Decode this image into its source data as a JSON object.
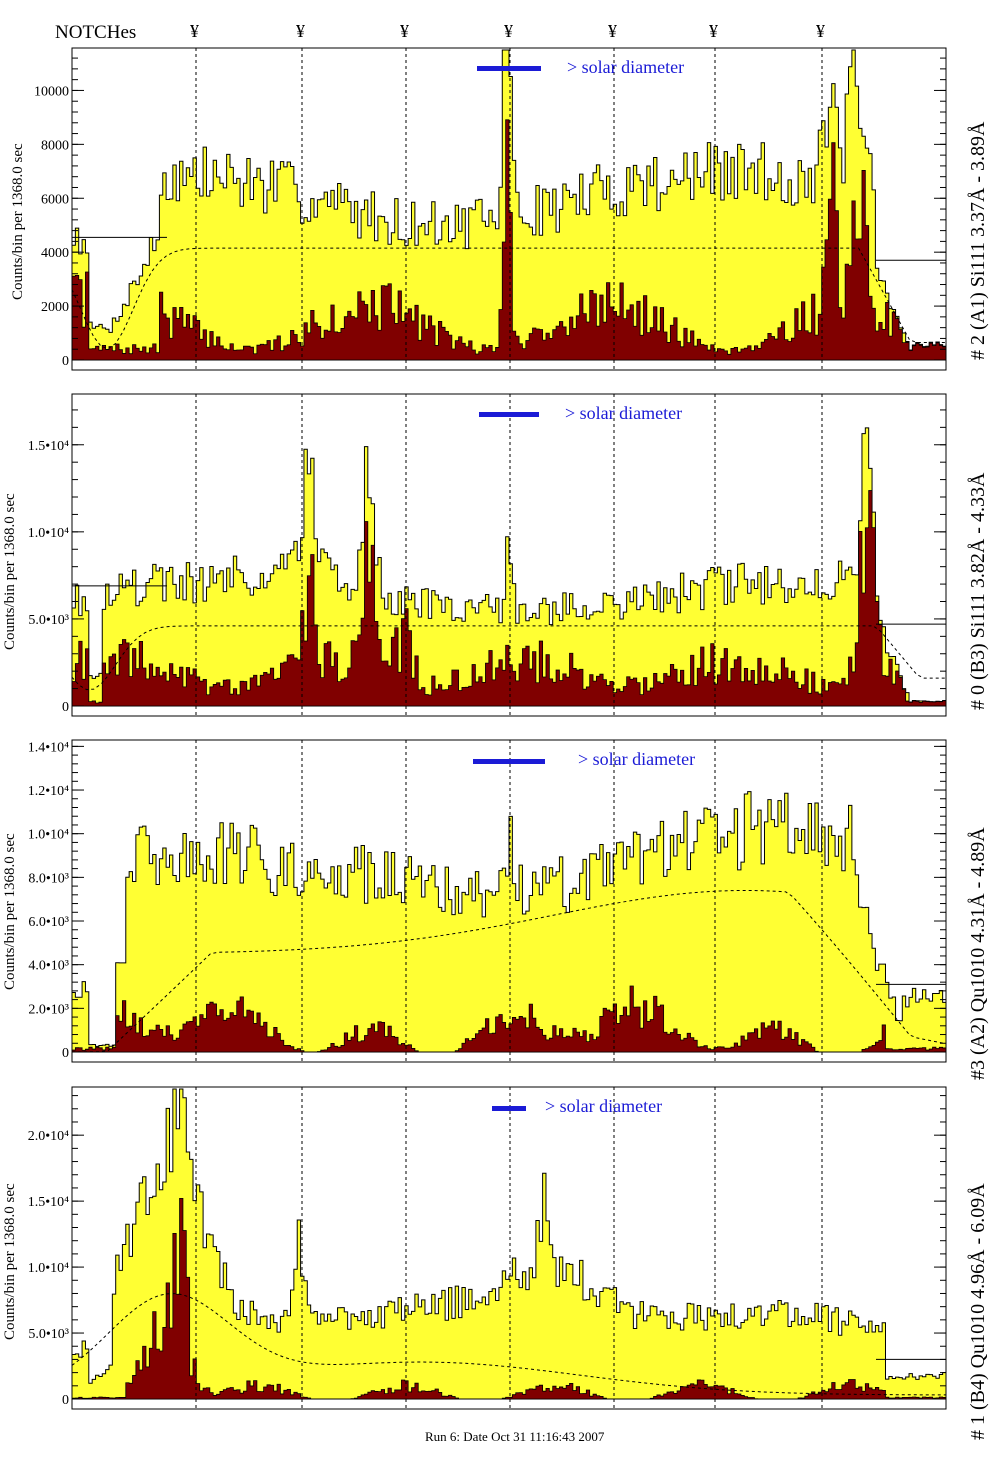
{
  "header": {
    "notches_label": "NOTCHes",
    "notch_symbol": "¥"
  },
  "footer": {
    "run_text": "Run 6: Date Oct 31 11:16:43 2007"
  },
  "colors": {
    "envelope_fill": "#ffff33",
    "core_fill": "#800000",
    "legend_bar": "#1b1bd6",
    "legend_text": "#1b1bd6"
  },
  "chart_data": [
    {
      "type": "area",
      "right_label": "# 2 (A1) Si111  3.37Å - 3.89Å",
      "ylabel": "Counts/bin per   1368.0 sec",
      "legend": "> solar diameter",
      "y_ticks": [
        "0",
        "2000",
        "4000",
        "6000",
        "8000",
        "10000"
      ],
      "ylim": [
        0,
        11500
      ],
      "peaks": [
        {
          "label": "peak near center",
          "value": 10100
        },
        {
          "label": "right peak",
          "value": 10600
        }
      ]
    },
    {
      "type": "area",
      "right_label": "# 0 (B3) Si111  3.82Å - 4.33Å",
      "ylabel": "Counts/bin per   1368.0 sec",
      "legend": "> solar diameter",
      "y_ticks": [
        "0",
        "5.0•10³",
        "1.0•10⁴",
        "1.5•10⁴"
      ],
      "ylim": [
        0,
        17800
      ],
      "peaks": [
        {
          "label": "left-center peak",
          "value": 15400
        },
        {
          "label": "right peak",
          "value": 16300
        }
      ]
    },
    {
      "type": "area",
      "right_label": "#3 (A2) Qu1010  4.31Å - 4.89Å",
      "ylabel": "Counts/bin per   1368.0 sec",
      "legend": "> solar diameter",
      "y_ticks": [
        "0",
        "2.0•10³",
        "4.0•10³",
        "6.0•10³",
        "8.0•10³",
        "1.0•10⁴",
        "1.2•10⁴",
        "1.4•10⁴"
      ],
      "ylim": [
        0,
        14200
      ],
      "peaks": [
        {
          "label": "maximum",
          "value": 12800
        }
      ]
    },
    {
      "type": "area",
      "right_label": "# 1 (B4) Qu1010 4.96Å - 6.09Å",
      "ylabel": "Counts/bin per   1368.0 sec",
      "legend": "> solar diameter",
      "y_ticks": [
        "0",
        "5.0•10³",
        "1.0•10⁴",
        "1.5•10⁴",
        "2.0•10⁴"
      ],
      "ylim": [
        0,
        23500
      ],
      "peaks": [
        {
          "label": "left peak",
          "value": 21300
        }
      ]
    }
  ]
}
